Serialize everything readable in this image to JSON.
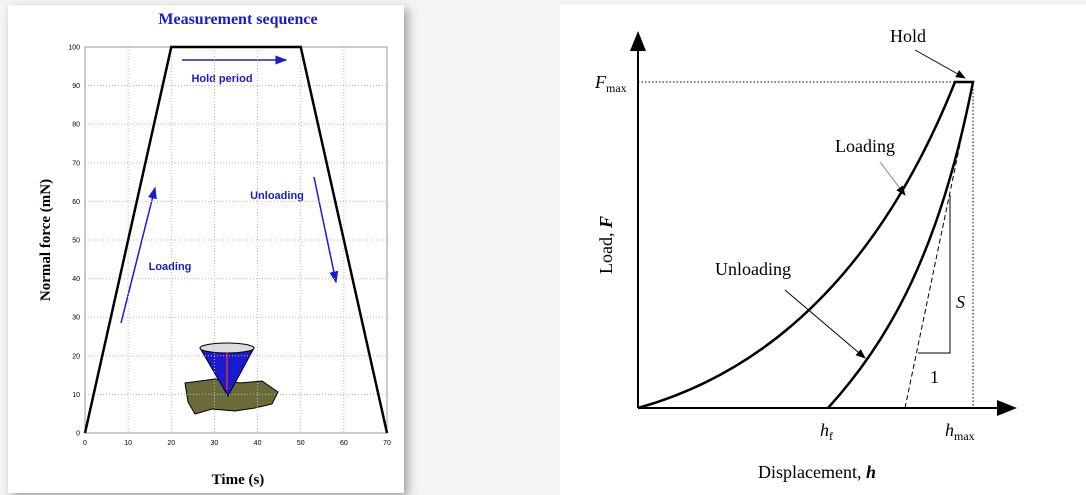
{
  "chart_data": {
    "type": "line",
    "title": "Measurement sequence",
    "x_label": "Time (s)",
    "y_label": "Normal force (mN)",
    "x": [
      0,
      20,
      50,
      70
    ],
    "values": [
      0,
      100,
      100,
      0
    ],
    "color": "#000000",
    "xlim": [
      0,
      70
    ],
    "ylim": [
      0,
      100
    ],
    "xticks": [
      0,
      10,
      20,
      30,
      40,
      50,
      60,
      70
    ],
    "yticks": [
      0,
      10,
      20,
      30,
      40,
      50,
      60,
      70,
      80,
      90,
      100
    ],
    "grid": true,
    "annotations": [
      "Hold period",
      "Loading",
      "Unloading"
    ]
  },
  "diagram": {
    "hold": "Hold",
    "fmax": {
      "symbol": "F",
      "subscript": "max"
    },
    "loading": "Loading",
    "unloading": "Unloading",
    "stiffness": "S",
    "unit": "1",
    "hf": {
      "symbol": "h",
      "subscript": "f"
    },
    "hmax": {
      "symbol": "h",
      "subscript": "max"
    },
    "y_label": {
      "text": "Load, ",
      "symbol": "F"
    },
    "x_label": {
      "text": "Displacement, ",
      "symbol": "h"
    }
  }
}
